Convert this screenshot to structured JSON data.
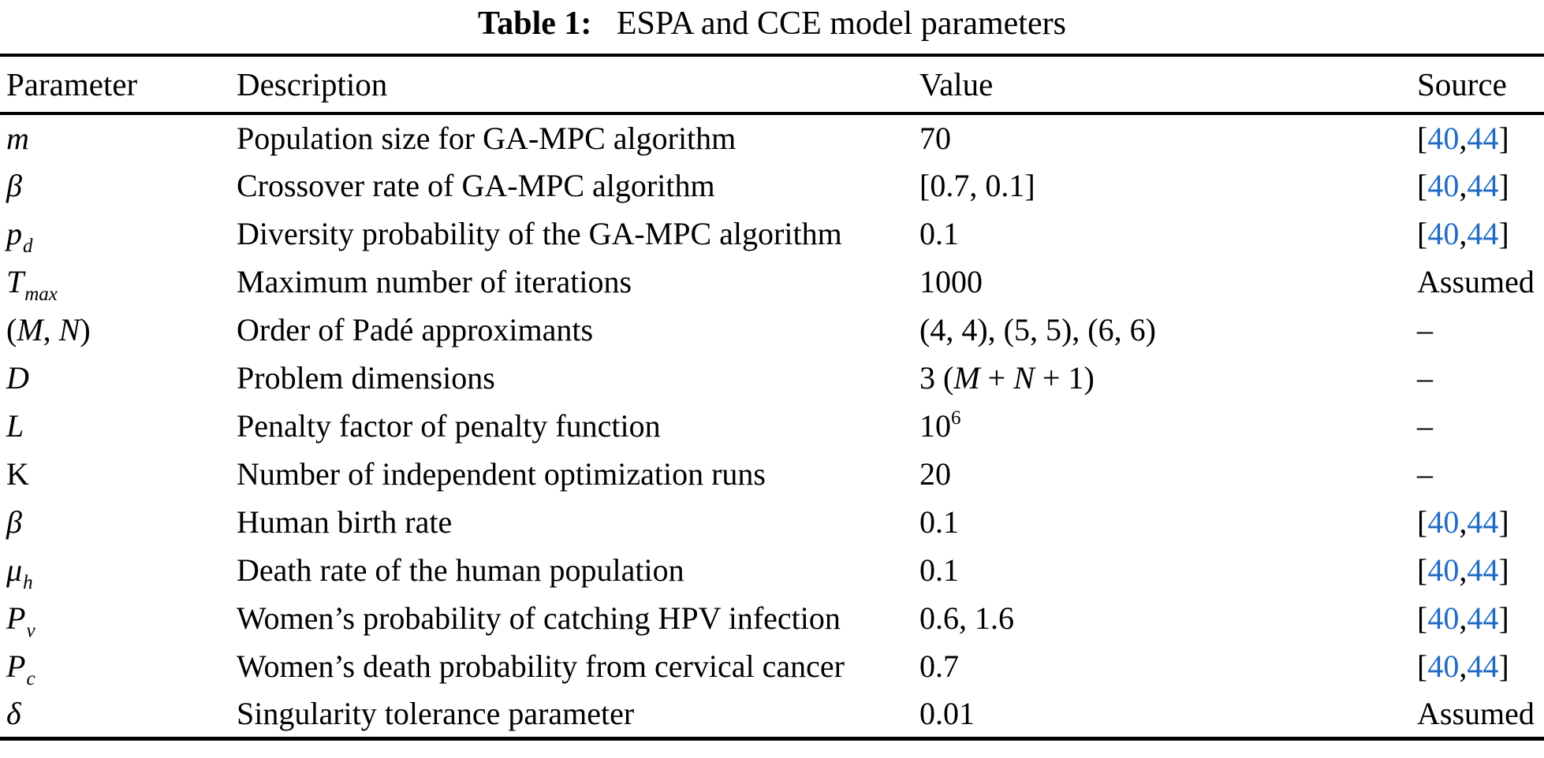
{
  "page": {
    "background": "#ffffff",
    "text_color": "#000000",
    "link_color": "#1e6bc6"
  },
  "caption": {
    "label": "Table 1:",
    "title": "ESPA and CCE model parameters"
  },
  "table": {
    "columns": [
      "Parameter",
      "Description",
      "Value",
      "Source"
    ],
    "rows": [
      {
        "parameter": [
          {
            "t": "m",
            "it": true
          }
        ],
        "description": [
          {
            "t": "Population size for GA-MPC algorithm"
          }
        ],
        "value": [
          {
            "t": "70"
          }
        ],
        "source": [
          {
            "t": "["
          },
          {
            "t": "40",
            "link": true
          },
          {
            "t": ","
          },
          {
            "t": "44",
            "link": true
          },
          {
            "t": "]"
          }
        ]
      },
      {
        "parameter": [
          {
            "t": "β",
            "it": true
          }
        ],
        "description": [
          {
            "t": "Crossover rate of GA-MPC algorithm"
          }
        ],
        "value": [
          {
            "t": "[0.7, 0.1]"
          }
        ],
        "source": [
          {
            "t": "["
          },
          {
            "t": "40",
            "link": true
          },
          {
            "t": ","
          },
          {
            "t": "44",
            "link": true
          },
          {
            "t": "]"
          }
        ]
      },
      {
        "parameter": [
          {
            "t": "p",
            "it": true
          },
          {
            "t": "d",
            "sub": true
          }
        ],
        "description": [
          {
            "t": "Diversity probability of the GA-MPC algorithm"
          }
        ],
        "value": [
          {
            "t": "0.1"
          }
        ],
        "source": [
          {
            "t": "["
          },
          {
            "t": "40",
            "link": true
          },
          {
            "t": ","
          },
          {
            "t": "44",
            "link": true
          },
          {
            "t": "]"
          }
        ]
      },
      {
        "parameter": [
          {
            "t": "T",
            "it": true
          },
          {
            "t": "max",
            "sub": true
          }
        ],
        "description": [
          {
            "t": "Maximum number of iterations"
          }
        ],
        "value": [
          {
            "t": "1000"
          }
        ],
        "source": [
          {
            "t": "Assumed"
          }
        ]
      },
      {
        "parameter": [
          {
            "t": "("
          },
          {
            "t": "M",
            "it": true
          },
          {
            "t": ", "
          },
          {
            "t": "N",
            "it": true
          },
          {
            "t": ")"
          }
        ],
        "description": [
          {
            "t": "Order of Padé approximants"
          }
        ],
        "value": [
          {
            "t": "(4, 4), (5, 5), (6, 6)"
          }
        ],
        "source": [
          {
            "t": "–"
          }
        ]
      },
      {
        "parameter": [
          {
            "t": "D",
            "it": true
          }
        ],
        "description": [
          {
            "t": "Problem dimensions"
          }
        ],
        "value": [
          {
            "t": "3 ("
          },
          {
            "t": "M",
            "it": true
          },
          {
            "t": " + "
          },
          {
            "t": "N",
            "it": true
          },
          {
            "t": " + 1)"
          }
        ],
        "source": [
          {
            "t": "–"
          }
        ]
      },
      {
        "parameter": [
          {
            "t": "L",
            "it": true
          }
        ],
        "description": [
          {
            "t": "Penalty factor of penalty function"
          }
        ],
        "value": [
          {
            "t": "10"
          },
          {
            "t": "6",
            "sup": true
          }
        ],
        "source": [
          {
            "t": "–"
          }
        ]
      },
      {
        "parameter": [
          {
            "t": "K"
          }
        ],
        "description": [
          {
            "t": "Number of independent optimization runs"
          }
        ],
        "value": [
          {
            "t": "20"
          }
        ],
        "source": [
          {
            "t": "–"
          }
        ]
      },
      {
        "parameter": [
          {
            "t": "β",
            "it": true
          }
        ],
        "description": [
          {
            "t": "Human birth rate"
          }
        ],
        "value": [
          {
            "t": "0.1"
          }
        ],
        "source": [
          {
            "t": "["
          },
          {
            "t": "40",
            "link": true
          },
          {
            "t": ","
          },
          {
            "t": "44",
            "link": true
          },
          {
            "t": "]"
          }
        ]
      },
      {
        "parameter": [
          {
            "t": "μ",
            "it": true
          },
          {
            "t": "h",
            "sub": true
          }
        ],
        "description": [
          {
            "t": "Death rate of the human population"
          }
        ],
        "value": [
          {
            "t": "0.1"
          }
        ],
        "source": [
          {
            "t": "["
          },
          {
            "t": "40",
            "link": true
          },
          {
            "t": ","
          },
          {
            "t": "44",
            "link": true
          },
          {
            "t": "]"
          }
        ]
      },
      {
        "parameter": [
          {
            "t": "P",
            "it": true
          },
          {
            "t": "v",
            "sub": true
          }
        ],
        "description": [
          {
            "t": "Women’s probability of catching HPV infection"
          }
        ],
        "value": [
          {
            "t": "0.6, 1.6"
          }
        ],
        "source": [
          {
            "t": "["
          },
          {
            "t": "40",
            "link": true
          },
          {
            "t": ","
          },
          {
            "t": "44",
            "link": true
          },
          {
            "t": "]"
          }
        ]
      },
      {
        "parameter": [
          {
            "t": "P",
            "it": true
          },
          {
            "t": "c",
            "sub": true
          }
        ],
        "description": [
          {
            "t": "Women’s death probability from cervical cancer"
          }
        ],
        "value": [
          {
            "t": "0.7"
          }
        ],
        "source": [
          {
            "t": "["
          },
          {
            "t": "40",
            "link": true
          },
          {
            "t": ","
          },
          {
            "t": "44",
            "link": true
          },
          {
            "t": "]"
          }
        ]
      },
      {
        "parameter": [
          {
            "t": "δ",
            "it": true
          }
        ],
        "description": [
          {
            "t": "Singularity tolerance parameter"
          }
        ],
        "value": [
          {
            "t": "0.01"
          }
        ],
        "source": [
          {
            "t": "Assumed"
          }
        ]
      }
    ]
  }
}
